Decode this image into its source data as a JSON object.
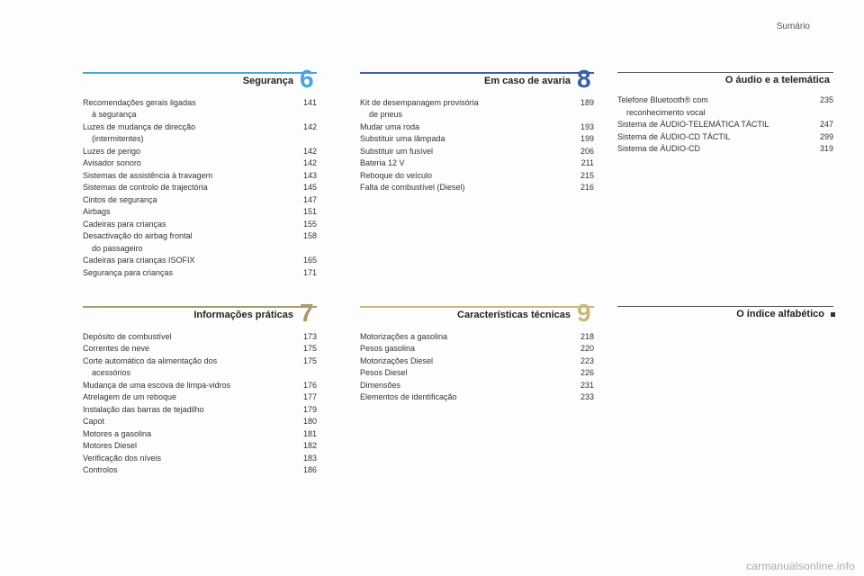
{
  "header": {
    "label": "Sumário"
  },
  "footer": {
    "text": "carmanualsonline.info"
  },
  "sections": {
    "s6": {
      "number": "6",
      "title": "Segurança",
      "items": [
        {
          "label": "Recomendações gerais ligadas",
          "label2": "à segurança",
          "page": "141"
        },
        {
          "label": "Luzes de mudança de direcção",
          "label2": "(intermitentes)",
          "page": "142"
        },
        {
          "label": "Luzes de perigo",
          "page": "142"
        },
        {
          "label": "Avisador sonoro",
          "page": "142"
        },
        {
          "label": "Sistemas de assistência à travagem",
          "page": "143"
        },
        {
          "label": "Sistemas de controlo de trajectória",
          "page": "145"
        },
        {
          "label": "Cintos de segurança",
          "page": "147"
        },
        {
          "label": "Airbags",
          "page": "151"
        },
        {
          "label": "Cadeiras para crianças",
          "page": "155"
        },
        {
          "label": "Desactivação do airbag frontal",
          "label2": "do passageiro",
          "page": "158"
        },
        {
          "label": "Cadeiras para crianças ISOFIX",
          "page": "165"
        },
        {
          "label": "Segurança para crianças",
          "page": "171"
        }
      ]
    },
    "s7": {
      "number": "7",
      "title": "Informações práticas",
      "items": [
        {
          "label": "Depósito de combustível",
          "page": "173"
        },
        {
          "label": "Correntes de neve",
          "page": "175"
        },
        {
          "label": "Corte automático da alimentação dos",
          "label2": "acessórios",
          "page": "175"
        },
        {
          "label": "Mudança de uma escova de limpa-vidros",
          "page": "176"
        },
        {
          "label": "Atrelagem de um reboque",
          "page": "177"
        },
        {
          "label": "Instalação das barras de tejadilho",
          "page": "179"
        },
        {
          "label": "Capot",
          "page": "180"
        },
        {
          "label": "Motores a gasolina",
          "page": "181"
        },
        {
          "label": "Motores Diesel",
          "page": "182"
        },
        {
          "label": "Verificação dos níveis",
          "page": "183"
        },
        {
          "label": "Controlos",
          "page": "186"
        }
      ]
    },
    "s8": {
      "number": "8",
      "title": "Em caso de avaria",
      "items": [
        {
          "label": "Kit de desempanagem provisória",
          "label2": "de pneus",
          "page": "189"
        },
        {
          "label": "Mudar uma roda",
          "page": "193"
        },
        {
          "label": "Substituir uma lâmpada",
          "page": "199"
        },
        {
          "label": "Substituir um fusível",
          "page": "206"
        },
        {
          "label": "Bateria 12 V",
          "page": "211"
        },
        {
          "label": "Reboque do veículo",
          "page": "215"
        },
        {
          "label": "Falta de combustível (Diesel)",
          "page": "216"
        }
      ]
    },
    "s9": {
      "number": "9",
      "title": "Características técnicas",
      "items": [
        {
          "label": "Motorizações a gasolina",
          "page": "218"
        },
        {
          "label": "Pesos gasolina",
          "page": "220"
        },
        {
          "label": "Motorizações Diesel",
          "page": "223"
        },
        {
          "label": "Pesos Diesel",
          "page": "226"
        },
        {
          "label": "Dimensões",
          "page": "231"
        },
        {
          "label": "Elementos de identificação",
          "page": "233"
        }
      ]
    },
    "audio": {
      "title": "O áudio e a telemática",
      "items": [
        {
          "label": "Telefone Bluetooth® com",
          "label2": "reconhecimento vocal",
          "page": "235"
        },
        {
          "label": "Sistema de ÁUDIO-TELEMÁTICA TÁCTIL",
          "page": "247"
        },
        {
          "label": "Sistema de ÁUDIO-CD TÁCTIL",
          "page": "299"
        },
        {
          "label": "Sistema de ÁUDIO-CD",
          "page": "319"
        }
      ]
    },
    "index": {
      "title": "O índice alfabético"
    }
  }
}
